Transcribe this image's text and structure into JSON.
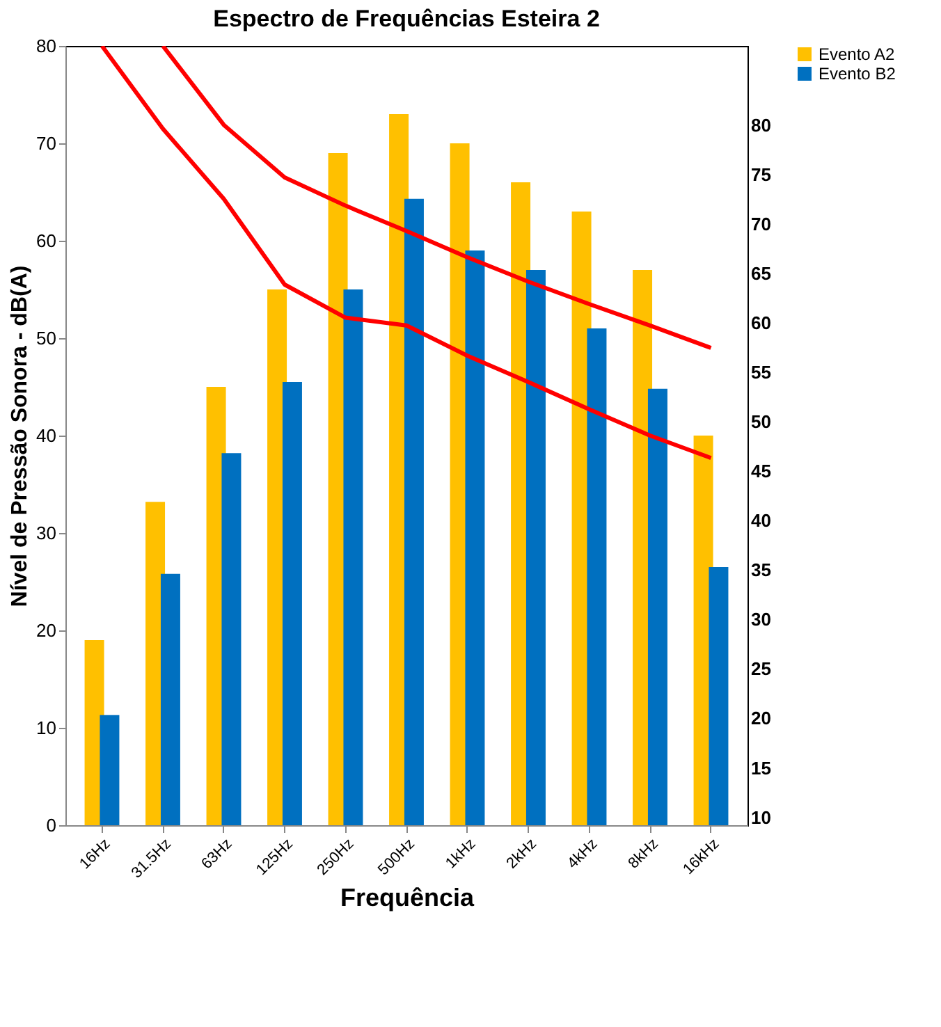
{
  "chart_data": {
    "type": "bar",
    "title": "Espectro de Frequências Esteira 2",
    "xlabel": "Frequência",
    "ylabel": "Nível de Pressão Sonora - dB(A)",
    "categories": [
      "16Hz",
      "31.5Hz",
      "63Hz",
      "125Hz",
      "250Hz",
      "500Hz",
      "1kHz",
      "2kHz",
      "4kHz",
      "8kHz",
      "16kHz"
    ],
    "series": [
      {
        "name": "Evento A2",
        "color": "#ffc000",
        "values": [
          19,
          33.2,
          45,
          55,
          69,
          73,
          70,
          66,
          63,
          57,
          40
        ]
      },
      {
        "name": "Evento B2",
        "color": "#0070c0",
        "values": [
          11.3,
          25.8,
          38.2,
          45.5,
          55,
          64.3,
          59,
          57,
          51,
          44.8,
          26.5
        ]
      },
      {
        "type": "line",
        "color": "#ff0000",
        "values": [
          null,
          80,
          71.9,
          66.5,
          63.6,
          61,
          58.3,
          55.8,
          53.5,
          51.3,
          49
        ]
      },
      {
        "type": "line",
        "color": "#ff0000",
        "values": [
          80,
          71.5,
          64.3,
          55.5,
          52.1,
          51.3,
          48.2,
          45.5,
          42.7,
          40,
          37.7
        ]
      }
    ],
    "ylim": [
      0,
      80
    ],
    "yticks": [
      0,
      10,
      20,
      30,
      40,
      50,
      60,
      70,
      80
    ],
    "y2lim": [
      9.2,
      88
    ],
    "y2ticks": [
      10,
      15,
      20,
      25,
      30,
      35,
      40,
      45,
      50,
      55,
      60,
      65,
      70,
      75,
      80
    ],
    "grid": false,
    "legend": "top right"
  }
}
